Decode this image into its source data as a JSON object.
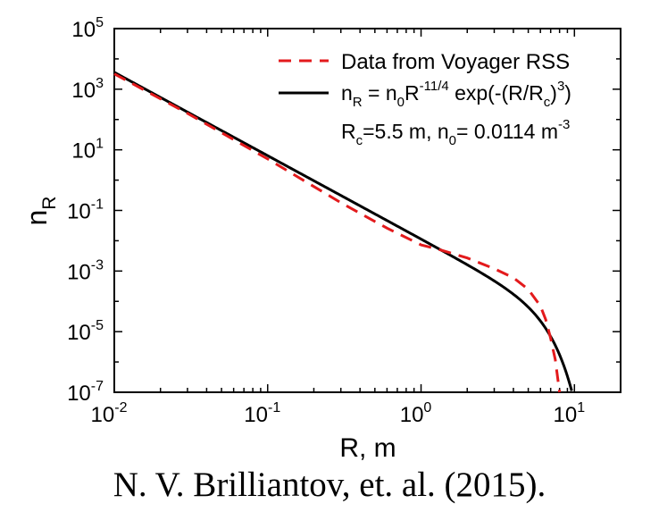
{
  "chart_data": {
    "type": "line",
    "xscale": "log",
    "yscale": "log",
    "xlim": [
      0.01,
      20
    ],
    "ylim": [
      1e-07,
      100000.0
    ],
    "xlabel": "R, m",
    "ylabel": "nR",
    "ylabel_main": "n",
    "ylabel_sub": "R",
    "x_ticks": [
      {
        "value": 0.01,
        "base": "10",
        "exp": "-2"
      },
      {
        "value": 0.1,
        "base": "10",
        "exp": "-1"
      },
      {
        "value": 1,
        "base": "10",
        "exp": "0"
      },
      {
        "value": 10,
        "base": "10",
        "exp": "1"
      }
    ],
    "y_ticks": [
      {
        "value": 100000.0,
        "base": "10",
        "exp": "5"
      },
      {
        "value": 1000.0,
        "base": "10",
        "exp": "3"
      },
      {
        "value": 10.0,
        "base": "10",
        "exp": "1"
      },
      {
        "value": 0.1,
        "base": "10",
        "exp": "-1"
      },
      {
        "value": 0.001,
        "base": "10",
        "exp": "-3"
      },
      {
        "value": 1e-05,
        "base": "10",
        "exp": "-5"
      },
      {
        "value": 1e-07,
        "base": "10",
        "exp": "-7"
      }
    ],
    "series": [
      {
        "name": "Data from Voyager RSS",
        "style": "dashed",
        "color": "#e31a1c",
        "x": [
          0.01,
          0.03,
          0.1,
          0.3,
          0.6,
          1.0,
          1.3,
          2.0,
          3.0,
          4.0,
          5.0,
          6.0,
          6.5,
          7.0,
          7.5,
          8.0
        ],
        "y": [
          3200.0,
          160.0,
          5.0,
          0.18,
          0.026,
          0.0073,
          0.0052,
          0.0027,
          0.0012,
          0.0006,
          0.00025,
          7e-05,
          2.5e-05,
          6e-06,
          1.2e-06,
          1e-07
        ]
      },
      {
        "name": "nR = n0R-11/4 exp(-(R/Rc)3)",
        "style": "solid",
        "color": "#000000",
        "model": {
          "n0": 0.0114,
          "exponent": -2.75,
          "Rc": 5.5,
          "x_min": 0.01,
          "x_max": 9.6
        }
      }
    ],
    "legend": {
      "position": "top-right",
      "entries": [
        {
          "label": "Data from Voyager RSS"
        },
        {
          "n": "n",
          "sub_R": "R",
          "eq": " = n",
          "sub_0": "0",
          "R": "R",
          "exp": "-11/4",
          "tail": " exp(-(R/R",
          "sub_c": "c",
          "close": ")",
          "cube": "3",
          "end": ")"
        }
      ]
    },
    "annotation": {
      "r": "R",
      "sub_c": "c",
      "mid": "=5.5 m, n",
      "sub_0": "0",
      "val": "= 0.0114 m",
      "exp": "-3"
    }
  },
  "caption": "N. V. Brilliantov, et. al. (2015)."
}
